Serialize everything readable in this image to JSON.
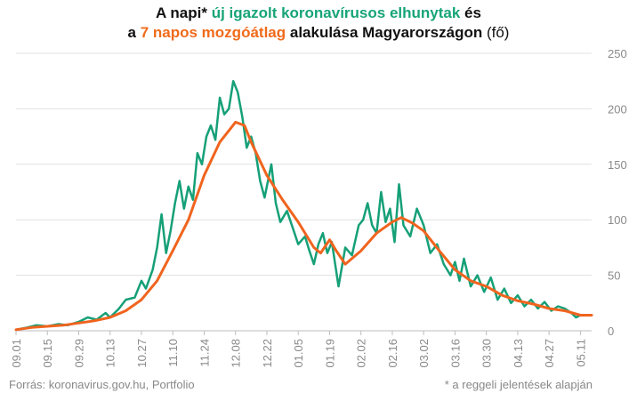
{
  "title": {
    "line1_pre": "A napi* ",
    "line1_green": "új igazolt koronavírusos elhunytak",
    "line1_post": " és",
    "line2_pre": "a ",
    "line2_orange": "7 napos mozgóátlag",
    "line2_post": " alakulása Magyarországon ",
    "line2_unit": "(fő)"
  },
  "footer": {
    "source": "Forrás: koronavirus.gov.hu, Portfolio",
    "note": "* a reggeli jelentések alapján"
  },
  "colors": {
    "daily": "#16a078",
    "average": "#f0641e",
    "grid": "#e0e0e0",
    "tick_text": "#8a8a8a"
  },
  "chart_data": {
    "type": "line",
    "x_start_date": "09.01",
    "x_end_date": "05.16",
    "ylim": [
      0,
      250
    ],
    "yticks": [
      0,
      50,
      100,
      150,
      200,
      250
    ],
    "xticks": [
      "09.01",
      "09.15",
      "09.29",
      "10.13",
      "10.27",
      "11.10",
      "11.24",
      "12.08",
      "12.22",
      "01.05",
      "01.19",
      "02.02",
      "02.16",
      "03.02",
      "03.16",
      "03.30",
      "04.13",
      "04.27",
      "05.11"
    ],
    "grid": "horizontal",
    "series": [
      {
        "id": "daily",
        "points": [
          [
            "09.01",
            1
          ],
          [
            "09.06",
            3
          ],
          [
            "09.10",
            5
          ],
          [
            "09.15",
            4
          ],
          [
            "09.20",
            6
          ],
          [
            "09.24",
            5
          ],
          [
            "09.29",
            8
          ],
          [
            "10.03",
            12
          ],
          [
            "10.07",
            10
          ],
          [
            "10.11",
            16
          ],
          [
            "10.13",
            12
          ],
          [
            "10.17",
            20
          ],
          [
            "10.20",
            28
          ],
          [
            "10.24",
            30
          ],
          [
            "10.27",
            45
          ],
          [
            "10.29",
            38
          ],
          [
            "11.01",
            55
          ],
          [
            "11.03",
            75
          ],
          [
            "11.05",
            105
          ],
          [
            "11.07",
            70
          ],
          [
            "11.09",
            90
          ],
          [
            "11.11",
            115
          ],
          [
            "11.13",
            135
          ],
          [
            "11.15",
            110
          ],
          [
            "11.17",
            130
          ],
          [
            "11.19",
            118
          ],
          [
            "11.21",
            160
          ],
          [
            "11.23",
            150
          ],
          [
            "11.25",
            175
          ],
          [
            "11.27",
            185
          ],
          [
            "11.29",
            172
          ],
          [
            "12.01",
            210
          ],
          [
            "12.03",
            195
          ],
          [
            "12.05",
            200
          ],
          [
            "12.07",
            225
          ],
          [
            "12.09",
            215
          ],
          [
            "12.11",
            193
          ],
          [
            "12.13",
            165
          ],
          [
            "12.15",
            175
          ],
          [
            "12.17",
            160
          ],
          [
            "12.19",
            135
          ],
          [
            "12.21",
            120
          ],
          [
            "12.24",
            150
          ],
          [
            "12.26",
            115
          ],
          [
            "12.28",
            98
          ],
          [
            "12.31",
            108
          ],
          [
            "01.03",
            90
          ],
          [
            "01.05",
            78
          ],
          [
            "01.08",
            85
          ],
          [
            "01.10",
            72
          ],
          [
            "01.12",
            60
          ],
          [
            "01.14",
            78
          ],
          [
            "01.16",
            88
          ],
          [
            "01.18",
            70
          ],
          [
            "01.20",
            80
          ],
          [
            "01.23",
            40
          ],
          [
            "01.26",
            75
          ],
          [
            "01.29",
            68
          ],
          [
            "02.01",
            95
          ],
          [
            "02.03",
            100
          ],
          [
            "02.05",
            115
          ],
          [
            "02.07",
            95
          ],
          [
            "02.09",
            88
          ],
          [
            "02.11",
            125
          ],
          [
            "02.13",
            98
          ],
          [
            "02.15",
            110
          ],
          [
            "02.17",
            80
          ],
          [
            "02.19",
            132
          ],
          [
            "02.21",
            95
          ],
          [
            "02.24",
            85
          ],
          [
            "02.27",
            110
          ],
          [
            "03.02",
            95
          ],
          [
            "03.05",
            70
          ],
          [
            "03.08",
            78
          ],
          [
            "03.11",
            60
          ],
          [
            "03.14",
            50
          ],
          [
            "03.16",
            62
          ],
          [
            "03.18",
            45
          ],
          [
            "03.20",
            65
          ],
          [
            "03.23",
            40
          ],
          [
            "03.26",
            50
          ],
          [
            "03.29",
            35
          ],
          [
            "04.01",
            48
          ],
          [
            "04.04",
            28
          ],
          [
            "04.07",
            38
          ],
          [
            "04.10",
            25
          ],
          [
            "04.13",
            32
          ],
          [
            "04.16",
            22
          ],
          [
            "04.19",
            28
          ],
          [
            "04.22",
            20
          ],
          [
            "04.25",
            26
          ],
          [
            "04.28",
            18
          ],
          [
            "05.01",
            22
          ],
          [
            "05.04",
            20
          ],
          [
            "05.07",
            16
          ],
          [
            "05.09",
            12
          ],
          [
            "05.11",
            14
          ],
          [
            "05.16",
            14
          ]
        ]
      },
      {
        "id": "average",
        "points": [
          [
            "09.01",
            1
          ],
          [
            "09.08",
            3
          ],
          [
            "09.15",
            4
          ],
          [
            "09.22",
            5
          ],
          [
            "09.29",
            7
          ],
          [
            "10.06",
            9
          ],
          [
            "10.13",
            12
          ],
          [
            "10.20",
            18
          ],
          [
            "10.27",
            28
          ],
          [
            "11.03",
            45
          ],
          [
            "11.10",
            72
          ],
          [
            "11.17",
            100
          ],
          [
            "11.24",
            140
          ],
          [
            "12.01",
            170
          ],
          [
            "12.08",
            188
          ],
          [
            "12.12",
            185
          ],
          [
            "12.15",
            170
          ],
          [
            "12.22",
            140
          ],
          [
            "12.29",
            118
          ],
          [
            "01.05",
            98
          ],
          [
            "01.12",
            75
          ],
          [
            "01.15",
            70
          ],
          [
            "01.19",
            82
          ],
          [
            "01.22",
            72
          ],
          [
            "01.26",
            60
          ],
          [
            "02.02",
            72
          ],
          [
            "02.09",
            88
          ],
          [
            "02.16",
            98
          ],
          [
            "02.20",
            102
          ],
          [
            "02.25",
            97
          ],
          [
            "03.02",
            90
          ],
          [
            "03.09",
            72
          ],
          [
            "03.16",
            55
          ],
          [
            "03.23",
            45
          ],
          [
            "03.30",
            40
          ],
          [
            "04.06",
            32
          ],
          [
            "04.13",
            27
          ],
          [
            "04.20",
            24
          ],
          [
            "04.27",
            20
          ],
          [
            "05.04",
            18
          ],
          [
            "05.11",
            14
          ],
          [
            "05.16",
            14
          ]
        ]
      }
    ]
  }
}
